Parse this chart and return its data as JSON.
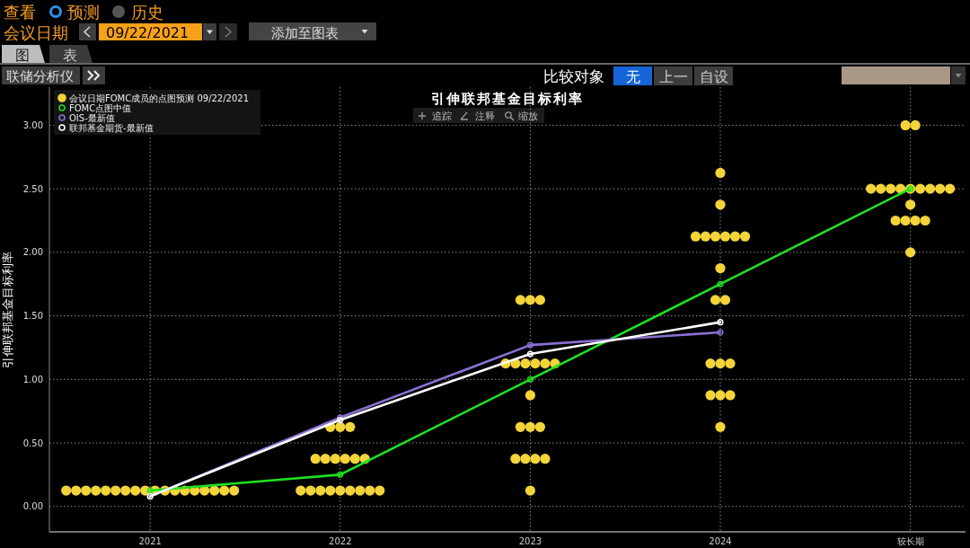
{
  "chart_data": {
    "type": "scatter",
    "title": "引伸联邦基金目标利率",
    "ylabel": "引伸联邦基金目标利率",
    "annotations": [
      "查看",
      "预测",
      "历史",
      "会议日期",
      "09/22/2021",
      "添加至图表",
      "图",
      "表",
      "联储分析仪",
      "比较对象",
      "无",
      "上一",
      "自设",
      "追踪",
      "注释",
      "缩放"
    ],
    "categories": [
      "2021",
      "2022",
      "2023",
      "2024",
      "较长期"
    ],
    "series": [
      {
        "name": "会议日期FOMC成员的点图预测 09/22/2021",
        "marker": "circle",
        "color": "#f3d43a",
        "values": [
          0.125,
          0.125,
          0.125,
          0.625,
          2.0
        ]
      },
      {
        "marker": "circle",
        "color": "#f3d43a",
        "values": [
          0.125,
          0.125,
          0.375,
          0.875,
          2.25
        ]
      },
      {
        "marker": "circle",
        "color": "#f3d43a",
        "values": [
          0.125,
          0.125,
          0.375,
          0.875,
          2.25
        ]
      },
      {
        "marker": "circle",
        "color": "#f3d43a",
        "values": [
          0.125,
          0.125,
          0.375,
          0.875,
          2.25
        ]
      },
      {
        "marker": "circle",
        "color": "#f3d43a",
        "values": [
          0.125,
          0.125,
          0.375,
          1.125,
          2.25
        ]
      },
      {
        "marker": "circle",
        "color": "#f3d43a",
        "values": [
          0.125,
          0.125,
          0.625,
          1.125,
          2.375
        ]
      },
      {
        "marker": "circle",
        "color": "#f3d43a",
        "values": [
          0.125,
          0.125,
          0.625,
          1.125,
          2.5
        ]
      },
      {
        "marker": "circle",
        "color": "#f3d43a",
        "values": [
          0.125,
          0.125,
          0.625,
          1.625,
          2.5
        ]
      },
      {
        "marker": "circle",
        "color": "#f3d43a",
        "values": [
          0.125,
          0.125,
          0.875,
          1.625,
          2.5
        ]
      },
      {
        "marker": "circle",
        "color": "#f3d43a",
        "values": [
          0.125,
          0.375,
          1.125,
          1.875,
          2.5
        ]
      },
      {
        "marker": "circle",
        "color": "#f3d43a",
        "values": [
          0.125,
          0.375,
          1.125,
          2.125,
          2.5
        ]
      },
      {
        "marker": "circle",
        "color": "#f3d43a",
        "values": [
          0.125,
          0.375,
          1.125,
          2.125,
          2.5
        ]
      },
      {
        "marker": "circle",
        "color": "#f3d43a",
        "values": [
          0.125,
          0.375,
          1.125,
          2.125,
          2.5
        ]
      },
      {
        "marker": "circle",
        "color": "#f3d43a",
        "values": [
          0.125,
          0.375,
          1.125,
          2.125,
          2.5
        ]
      },
      {
        "marker": "circle",
        "color": "#f3d43a",
        "values": [
          0.125,
          0.375,
          1.125,
          2.125,
          2.5
        ]
      },
      {
        "marker": "circle",
        "color": "#f3d43a",
        "values": [
          0.125,
          0.625,
          1.625,
          2.125,
          3.0
        ]
      },
      {
        "marker": "circle",
        "color": "#f3d43a",
        "values": [
          0.125,
          0.625,
          1.625,
          2.375,
          3.0
        ]
      },
      {
        "marker": "circle",
        "color": "#f3d43a",
        "values": [
          0.125,
          0.625,
          1.625,
          2.625,
          null
        ]
      },
      {
        "name": "FOMC点图中值",
        "type": "line",
        "marker": "circle",
        "color": "#1fe01f",
        "values": [
          0.125,
          0.25,
          1.0,
          1.75,
          2.5
        ]
      },
      {
        "name": "OIS-最新值",
        "type": "line",
        "marker": "circle",
        "color": "#8a70d0",
        "values": [
          0.08,
          0.7,
          1.27,
          1.37,
          null
        ]
      },
      {
        "name": "联邦基金期货-最新值",
        "type": "line",
        "marker": "circle",
        "color": "#ffffff",
        "values": [
          0.08,
          0.68,
          1.2,
          1.45,
          null
        ]
      }
    ],
    "ylim": [
      -0.2,
      3.3
    ],
    "yticks": [
      {
        "value": 0,
        "label": "0.00"
      },
      {
        "value": 0.5,
        "label": "0.50"
      },
      {
        "value": 1,
        "label": "1.00"
      },
      {
        "value": 1.5,
        "label": "1.50"
      },
      {
        "value": 2,
        "label": "2.00"
      },
      {
        "value": 2.5,
        "label": "2.50"
      },
      {
        "value": 3,
        "label": "3.00"
      }
    ],
    "grid": true,
    "legend": "top left"
  }
}
